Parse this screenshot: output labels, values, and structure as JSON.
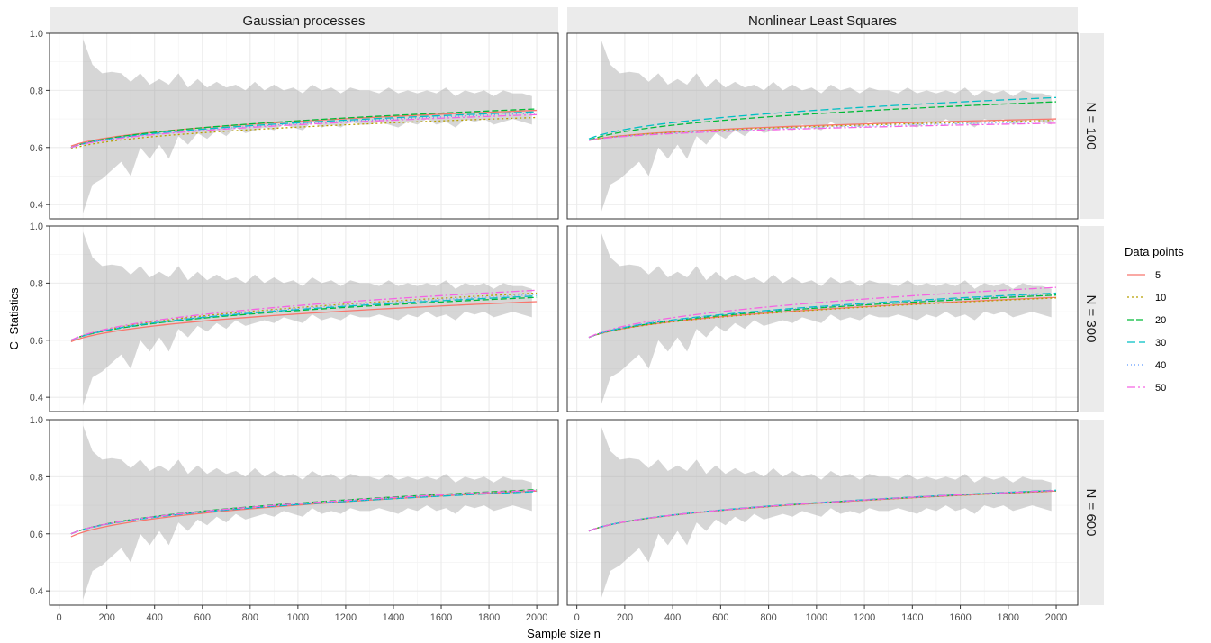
{
  "chart_data": {
    "type": "line",
    "xlabel": "Sample size n",
    "ylabel": "C−Statistics",
    "xlim": [
      -40,
      2090
    ],
    "ylim": [
      0.35,
      1.0
    ],
    "x_ticks": [
      0,
      200,
      400,
      600,
      800,
      1000,
      1200,
      1400,
      1600,
      1800,
      2000
    ],
    "x_tick_labels": [
      "0",
      "200",
      "400",
      "600",
      "800",
      "1000",
      "1200",
      "1400",
      "1600",
      "1800",
      "2000"
    ],
    "y_ticks": [
      0.4,
      0.6,
      0.8,
      1.0
    ],
    "y_tick_labels": [
      "0.4",
      "0.6",
      "0.8",
      "1.0"
    ],
    "grid": true,
    "columns": [
      "Gaussian processes",
      "Nonlinear Least Squares"
    ],
    "rows": [
      "N = 100",
      "N = 300",
      "N = 600"
    ],
    "legend": {
      "title": "Data points",
      "placement": "right",
      "entries": [
        {
          "label": "5",
          "color": "#F8766D",
          "dash": ""
        },
        {
          "label": "10",
          "color": "#B79F00",
          "dash": "2,3"
        },
        {
          "label": "20",
          "color": "#00BA38",
          "dash": "7,3"
        },
        {
          "label": "30",
          "color": "#00BFC4",
          "dash": "9,4"
        },
        {
          "label": "40",
          "color": "#619CFF",
          "dash": "1,3"
        },
        {
          "label": "50",
          "color": "#F564E3",
          "dash": "9,3,2,3"
        }
      ]
    },
    "band": {
      "x": [
        100,
        140,
        180,
        220,
        260,
        300,
        340,
        380,
        420,
        460,
        500,
        540,
        580,
        620,
        660,
        700,
        740,
        780,
        820,
        860,
        900,
        940,
        980,
        1020,
        1060,
        1100,
        1140,
        1180,
        1220,
        1260,
        1300,
        1340,
        1380,
        1420,
        1460,
        1500,
        1540,
        1580,
        1620,
        1660,
        1700,
        1740,
        1780,
        1820,
        1860,
        1900,
        1940,
        1980
      ],
      "upper": [
        0.98,
        0.89,
        0.86,
        0.865,
        0.86,
        0.83,
        0.86,
        0.82,
        0.84,
        0.82,
        0.86,
        0.81,
        0.84,
        0.81,
        0.83,
        0.81,
        0.82,
        0.8,
        0.83,
        0.8,
        0.82,
        0.8,
        0.81,
        0.79,
        0.82,
        0.8,
        0.81,
        0.79,
        0.81,
        0.8,
        0.8,
        0.79,
        0.81,
        0.79,
        0.8,
        0.79,
        0.8,
        0.79,
        0.81,
        0.78,
        0.8,
        0.79,
        0.8,
        0.78,
        0.8,
        0.79,
        0.79,
        0.78
      ],
      "lower": [
        0.37,
        0.47,
        0.49,
        0.52,
        0.55,
        0.5,
        0.6,
        0.56,
        0.61,
        0.56,
        0.64,
        0.61,
        0.65,
        0.63,
        0.66,
        0.64,
        0.67,
        0.65,
        0.66,
        0.67,
        0.66,
        0.68,
        0.67,
        0.66,
        0.69,
        0.67,
        0.68,
        0.67,
        0.69,
        0.68,
        0.68,
        0.69,
        0.68,
        0.67,
        0.69,
        0.68,
        0.7,
        0.68,
        0.69,
        0.67,
        0.7,
        0.69,
        0.7,
        0.68,
        0.69,
        0.7,
        0.69,
        0.68
      ]
    },
    "panels": [
      {
        "column": "Gaussian processes",
        "row": "N = 100",
        "series": [
          {
            "legend": "5",
            "start": 0.605,
            "end": 0.73
          },
          {
            "legend": "10",
            "start": 0.595,
            "end": 0.705
          },
          {
            "legend": "20",
            "start": 0.6,
            "end": 0.735
          },
          {
            "legend": "30",
            "start": 0.6,
            "end": 0.725
          },
          {
            "legend": "40",
            "start": 0.6,
            "end": 0.72
          },
          {
            "legend": "50",
            "start": 0.6,
            "end": 0.715
          }
        ]
      },
      {
        "column": "Nonlinear Least Squares",
        "row": "N = 100",
        "series": [
          {
            "legend": "5",
            "start": 0.625,
            "end": 0.7
          },
          {
            "legend": "10",
            "start": 0.625,
            "end": 0.695
          },
          {
            "legend": "20",
            "start": 0.625,
            "end": 0.76
          },
          {
            "legend": "30",
            "start": 0.63,
            "end": 0.775
          },
          {
            "legend": "40",
            "start": 0.625,
            "end": 0.69
          },
          {
            "legend": "50",
            "start": 0.625,
            "end": 0.685
          }
        ]
      },
      {
        "column": "Gaussian processes",
        "row": "N = 300",
        "series": [
          {
            "legend": "5",
            "start": 0.595,
            "end": 0.735
          },
          {
            "legend": "10",
            "start": 0.6,
            "end": 0.765
          },
          {
            "legend": "20",
            "start": 0.6,
            "end": 0.75
          },
          {
            "legend": "30",
            "start": 0.6,
            "end": 0.755
          },
          {
            "legend": "40",
            "start": 0.6,
            "end": 0.76
          },
          {
            "legend": "50",
            "start": 0.6,
            "end": 0.775
          }
        ]
      },
      {
        "column": "Nonlinear Least Squares",
        "row": "N = 300",
        "series": [
          {
            "legend": "5",
            "start": 0.61,
            "end": 0.75
          },
          {
            "legend": "10",
            "start": 0.61,
            "end": 0.748
          },
          {
            "legend": "20",
            "start": 0.61,
            "end": 0.758
          },
          {
            "legend": "30",
            "start": 0.61,
            "end": 0.765
          },
          {
            "legend": "40",
            "start": 0.61,
            "end": 0.762
          },
          {
            "legend": "50",
            "start": 0.61,
            "end": 0.785
          }
        ]
      },
      {
        "column": "Gaussian processes",
        "row": "N = 600",
        "series": [
          {
            "legend": "5",
            "start": 0.59,
            "end": 0.75
          },
          {
            "legend": "10",
            "start": 0.6,
            "end": 0.752
          },
          {
            "legend": "20",
            "start": 0.6,
            "end": 0.755
          },
          {
            "legend": "30",
            "start": 0.6,
            "end": 0.748
          },
          {
            "legend": "40",
            "start": 0.6,
            "end": 0.75
          },
          {
            "legend": "50",
            "start": 0.6,
            "end": 0.753
          }
        ]
      },
      {
        "column": "Nonlinear Least Squares",
        "row": "N = 600",
        "series": [
          {
            "legend": "5",
            "start": 0.61,
            "end": 0.75
          },
          {
            "legend": "10",
            "start": 0.61,
            "end": 0.75
          },
          {
            "legend": "20",
            "start": 0.61,
            "end": 0.752
          },
          {
            "legend": "30",
            "start": 0.61,
            "end": 0.753
          },
          {
            "legend": "40",
            "start": 0.61,
            "end": 0.751
          },
          {
            "legend": "50",
            "start": 0.61,
            "end": 0.752
          }
        ]
      }
    ]
  }
}
